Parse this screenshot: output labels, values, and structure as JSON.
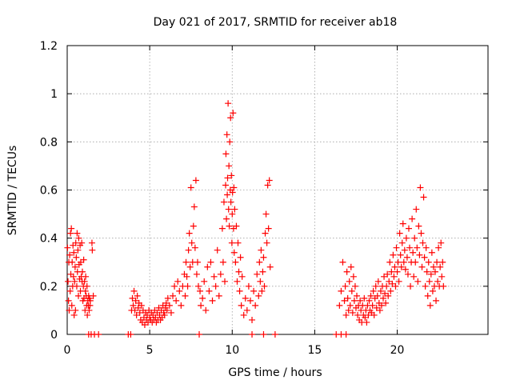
{
  "chart_data": {
    "type": "scatter",
    "title": "Day 021 of 2017, SRMTID for receiver ab18",
    "xlabel": "GPS time / hours",
    "ylabel": "SRMTID / TECUs",
    "xlim": [
      0,
      25.5
    ],
    "ylim": [
      0,
      1.2
    ],
    "x_ticks": [
      0,
      5,
      10,
      15,
      20
    ],
    "y_ticks": [
      0,
      0.2,
      0.4,
      0.6,
      0.8,
      1.0,
      1.2
    ],
    "x_tick_labels": [
      "0",
      "5",
      "10",
      "15",
      "20"
    ],
    "y_tick_labels": [
      "0",
      "0.2",
      "0.4",
      "0.6",
      "0.8",
      "1",
      "1.2"
    ],
    "grid": true,
    "marker": "plus",
    "color": "#ff0000",
    "series": [
      {
        "name": "SRMTID",
        "x": [
          0.02,
          0.05,
          0.08,
          0.1,
          0.12,
          0.15,
          0.18,
          0.2,
          0.22,
          0.25,
          0.28,
          0.3,
          0.33,
          0.35,
          0.38,
          0.4,
          0.42,
          0.45,
          0.48,
          0.5,
          0.52,
          0.55,
          0.58,
          0.6,
          0.62,
          0.65,
          0.68,
          0.7,
          0.72,
          0.75,
          0.78,
          0.8,
          0.82,
          0.85,
          0.88,
          0.9,
          0.92,
          0.95,
          0.98,
          1.0,
          1.02,
          1.05,
          1.08,
          1.1,
          1.12,
          1.15,
          1.18,
          1.2,
          1.22,
          1.25,
          1.28,
          1.3,
          1.33,
          1.35,
          1.38,
          1.4,
          1.5,
          1.52,
          1.58,
          1.3,
          1.45,
          1.65,
          1.9,
          3.7,
          3.85,
          3.9,
          3.95,
          4.0,
          4.05,
          4.1,
          4.15,
          4.2,
          4.25,
          4.3,
          4.35,
          4.4,
          4.45,
          4.5,
          4.55,
          4.6,
          4.65,
          4.7,
          4.75,
          4.8,
          4.85,
          4.9,
          4.95,
          5.0,
          5.05,
          5.1,
          5.15,
          5.2,
          5.25,
          5.3,
          5.35,
          5.4,
          5.45,
          5.5,
          5.55,
          5.6,
          5.65,
          5.7,
          5.75,
          5.8,
          5.85,
          5.9,
          5.95,
          6.0,
          6.05,
          6.1,
          6.2,
          6.3,
          6.4,
          6.5,
          6.6,
          6.7,
          6.8,
          6.9,
          7.0,
          7.1,
          7.15,
          7.2,
          7.25,
          7.3,
          7.35,
          7.4,
          7.45,
          7.5,
          7.55,
          7.6,
          7.65,
          7.7,
          7.75,
          7.8,
          7.85,
          7.9,
          7.95,
          8.0,
          8.05,
          8.1,
          8.2,
          8.3,
          8.4,
          8.5,
          8.6,
          8.7,
          8.8,
          8.9,
          9.0,
          9.1,
          9.2,
          9.3,
          9.4,
          9.45,
          9.5,
          9.55,
          9.6,
          9.62,
          9.65,
          9.68,
          9.7,
          9.72,
          9.75,
          9.78,
          9.8,
          9.82,
          9.85,
          9.88,
          9.9,
          9.92,
          9.95,
          9.98,
          10.0,
          10.02,
          10.05,
          10.08,
          10.1,
          10.12,
          10.15,
          10.2,
          10.25,
          10.3,
          10.35,
          10.4,
          10.45,
          10.5,
          10.55,
          10.6,
          10.7,
          10.8,
          10.9,
          11.0,
          11.1,
          11.2,
          11.3,
          11.4,
          11.5,
          11.6,
          11.65,
          11.7,
          11.75,
          11.8,
          11.85,
          11.9,
          11.95,
          12.0,
          12.05,
          12.1,
          12.15,
          12.2,
          12.25,
          12.3,
          11.2,
          11.9,
          12.6,
          16.3,
          16.5,
          16.6,
          16.7,
          16.8,
          16.85,
          16.9,
          16.95,
          17.0,
          17.05,
          17.1,
          17.15,
          17.2,
          17.25,
          17.3,
          17.35,
          17.4,
          17.45,
          17.5,
          17.55,
          17.6,
          17.65,
          17.7,
          17.75,
          17.8,
          17.85,
          17.9,
          17.95,
          18.0,
          18.05,
          18.1,
          18.15,
          18.2,
          18.25,
          18.3,
          18.35,
          18.4,
          18.45,
          18.5,
          18.55,
          18.6,
          18.65,
          18.7,
          18.75,
          18.8,
          18.85,
          18.9,
          18.95,
          19.0,
          19.05,
          19.1,
          19.15,
          19.2,
          19.25,
          19.3,
          19.35,
          19.4,
          19.45,
          19.5,
          19.55,
          19.6,
          19.65,
          19.7,
          19.75,
          19.8,
          19.85,
          19.9,
          19.95,
          20.0,
          20.05,
          20.1,
          20.15,
          20.2,
          20.25,
          20.3,
          20.35,
          20.4,
          20.45,
          20.5,
          20.55,
          20.6,
          20.65,
          20.7,
          20.75,
          20.8,
          20.85,
          20.9,
          20.95,
          21.0,
          21.05,
          21.1,
          21.15,
          21.2,
          21.25,
          21.3,
          21.35,
          21.4,
          21.45,
          21.5,
          21.55,
          21.6,
          21.65,
          21.7,
          21.75,
          21.8,
          21.85,
          21.9,
          21.95,
          22.0,
          22.05,
          22.1,
          22.15,
          22.2,
          22.25,
          22.3,
          22.35,
          22.4,
          22.45,
          22.5,
          22.55,
          22.6,
          22.65,
          22.7,
          22.75,
          22.8,
          16.6,
          16.9
        ],
        "y": [
          0.36,
          0.22,
          0.14,
          0.3,
          0.1,
          0.33,
          0.18,
          0.42,
          0.25,
          0.44,
          0.12,
          0.3,
          0.2,
          0.37,
          0.24,
          0.34,
          0.08,
          0.22,
          0.28,
          0.1,
          0.38,
          0.32,
          0.2,
          0.42,
          0.26,
          0.35,
          0.16,
          0.4,
          0.29,
          0.23,
          0.37,
          0.18,
          0.3,
          0.24,
          0.38,
          0.22,
          0.26,
          0.14,
          0.2,
          0.31,
          0.15,
          0.22,
          0.1,
          0.18,
          0.24,
          0.16,
          0.12,
          0.2,
          0.08,
          0.14,
          0.12,
          0.16,
          0.1,
          0.15,
          0.12,
          0.14,
          0.38,
          0.35,
          0.16,
          0.0,
          0.0,
          0.0,
          0.0,
          0.0,
          0.0,
          0.1,
          0.15,
          0.12,
          0.18,
          0.1,
          0.14,
          0.08,
          0.16,
          0.11,
          0.13,
          0.09,
          0.06,
          0.12,
          0.05,
          0.1,
          0.07,
          0.04,
          0.09,
          0.06,
          0.08,
          0.05,
          0.1,
          0.07,
          0.06,
          0.09,
          0.05,
          0.08,
          0.06,
          0.1,
          0.07,
          0.05,
          0.09,
          0.06,
          0.11,
          0.08,
          0.06,
          0.1,
          0.07,
          0.12,
          0.09,
          0.08,
          0.11,
          0.13,
          0.1,
          0.15,
          0.12,
          0.09,
          0.16,
          0.2,
          0.14,
          0.22,
          0.18,
          0.12,
          0.2,
          0.25,
          0.16,
          0.3,
          0.24,
          0.2,
          0.35,
          0.42,
          0.28,
          0.61,
          0.38,
          0.3,
          0.45,
          0.53,
          0.36,
          0.64,
          0.25,
          0.3,
          0.2,
          0.0,
          0.18,
          0.12,
          0.15,
          0.22,
          0.1,
          0.28,
          0.18,
          0.3,
          0.14,
          0.24,
          0.2,
          0.35,
          0.16,
          0.25,
          0.44,
          0.3,
          0.55,
          0.22,
          0.62,
          0.75,
          0.48,
          0.83,
          0.58,
          0.65,
          0.96,
          0.52,
          0.7,
          0.45,
          0.8,
          0.6,
          0.9,
          0.55,
          0.66,
          0.38,
          0.5,
          0.59,
          0.92,
          0.44,
          0.61,
          0.34,
          0.52,
          0.3,
          0.45,
          0.22,
          0.38,
          0.26,
          0.18,
          0.32,
          0.12,
          0.24,
          0.08,
          0.15,
          0.1,
          0.2,
          0.14,
          0.06,
          0.18,
          0.12,
          0.25,
          0.16,
          0.3,
          0.22,
          0.35,
          0.18,
          0.26,
          0.32,
          0.2,
          0.42,
          0.5,
          0.38,
          0.62,
          0.44,
          0.64,
          0.28,
          0.0,
          0.0,
          0.0,
          0.0,
          0.12,
          0.18,
          0.3,
          0.14,
          0.2,
          0.08,
          0.26,
          0.15,
          0.1,
          0.22,
          0.12,
          0.28,
          0.18,
          0.09,
          0.24,
          0.14,
          0.2,
          0.11,
          0.16,
          0.08,
          0.12,
          0.06,
          0.14,
          0.1,
          0.05,
          0.12,
          0.08,
          0.15,
          0.07,
          0.1,
          0.05,
          0.12,
          0.08,
          0.14,
          0.1,
          0.16,
          0.09,
          0.12,
          0.18,
          0.08,
          0.15,
          0.2,
          0.11,
          0.16,
          0.22,
          0.13,
          0.1,
          0.18,
          0.12,
          0.2,
          0.15,
          0.24,
          0.17,
          0.13,
          0.2,
          0.25,
          0.16,
          0.22,
          0.3,
          0.18,
          0.26,
          0.21,
          0.33,
          0.24,
          0.28,
          0.2,
          0.36,
          0.26,
          0.3,
          0.22,
          0.42,
          0.33,
          0.28,
          0.38,
          0.46,
          0.3,
          0.35,
          0.27,
          0.4,
          0.32,
          0.25,
          0.44,
          0.36,
          0.2,
          0.3,
          0.48,
          0.34,
          0.24,
          0.4,
          0.3,
          0.52,
          0.36,
          0.22,
          0.45,
          0.33,
          0.61,
          0.42,
          0.28,
          0.38,
          0.57,
          0.32,
          0.2,
          0.36,
          0.26,
          0.16,
          0.3,
          0.22,
          0.12,
          0.25,
          0.34,
          0.18,
          0.28,
          0.2,
          0.26,
          0.14,
          0.3,
          0.22,
          0.36,
          0.2,
          0.28,
          0.38,
          0.24,
          0.3,
          0.2,
          0.0,
          0.0
        ]
      }
    ]
  }
}
